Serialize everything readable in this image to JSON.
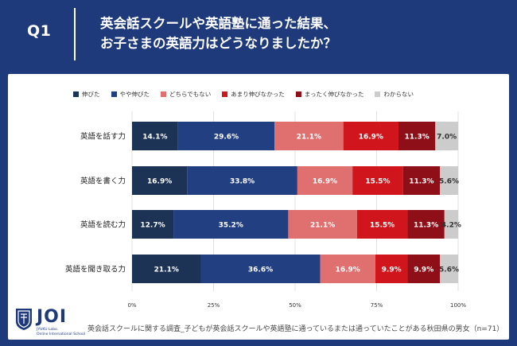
{
  "header": {
    "q_label": "Q1",
    "title_line1": "英会話スクールや英語塾に通った結果、",
    "title_line2": "お子さまの英語力はどうなりましたか？"
  },
  "colors": {
    "background": "#1f3a7a",
    "panel": "#ffffff",
    "series": [
      "#1d3356",
      "#223f82",
      "#e07070",
      "#d0151c",
      "#8e0f17",
      "#cccccc"
    ]
  },
  "chart_data": {
    "type": "bar",
    "orientation": "horizontal-stacked-100",
    "categories": [
      "英語を話す力",
      "英語を書く力",
      "英語を読む力",
      "英語を聞き取る力"
    ],
    "series": [
      {
        "name": "伸びた",
        "values": [
          14.1,
          16.9,
          12.7,
          21.1
        ],
        "labels": [
          "14.1%",
          "16.9%",
          "12.7%",
          "21.1%"
        ]
      },
      {
        "name": "やや伸びた",
        "values": [
          29.6,
          33.8,
          35.2,
          36.6
        ],
        "labels": [
          "29.6%",
          "33.8%",
          "35.2%",
          "36.6%"
        ]
      },
      {
        "name": "どちらでもない",
        "values": [
          21.1,
          16.9,
          21.1,
          16.9
        ],
        "labels": [
          "21.1%",
          "16.9%",
          "21.1%",
          "16.9%"
        ]
      },
      {
        "name": "あまり伸びなかった",
        "values": [
          16.9,
          15.5,
          15.5,
          9.9
        ],
        "labels": [
          "16.9%",
          "15.5%",
          "15.5%",
          "9.9%"
        ]
      },
      {
        "name": "まったく伸びなかった",
        "values": [
          11.3,
          11.3,
          11.3,
          9.9
        ],
        "labels": [
          "11.3%",
          "11.3%",
          "11.3%",
          "9.9%"
        ]
      },
      {
        "name": "わからない",
        "values": [
          7.0,
          5.6,
          4.2,
          5.6
        ],
        "labels": [
          "7.0%",
          "5.6%",
          "4.2%",
          "5.6%"
        ]
      }
    ],
    "x_ticks": [
      "0%",
      "25%",
      "50%",
      "75%",
      "100%"
    ],
    "xlim": [
      0,
      100
    ],
    "grid": true,
    "legend_position": "top"
  },
  "footer": {
    "logo_text": "JOI",
    "logo_sub1": "JYUKU Labo.",
    "logo_sub2": "Online International School",
    "note": "英会話スクールに関する調査_子どもが英会話スクールや英語塾に通っているまたは通っていたことがある秋田県の男女（n=71）"
  }
}
